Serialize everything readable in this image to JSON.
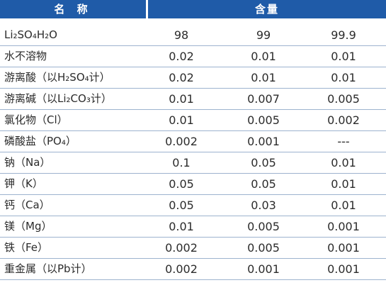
{
  "header": {
    "name_label": "名 称",
    "content_label": "含量"
  },
  "rows": [
    {
      "name": "Li₂SO₄H₂O",
      "v1": "98",
      "v2": "99",
      "v3": "99.9"
    },
    {
      "name": "水不溶物",
      "v1": "0.02",
      "v2": "0.01",
      "v3": "0.01"
    },
    {
      "name": "游离酸（以H₂SO₄计）",
      "v1": "0.02",
      "v2": "0.01",
      "v3": "0.01"
    },
    {
      "name": "游离碱（以Li₂CO₃计）",
      "v1": "0.01",
      "v2": "0.007",
      "v3": "0.005"
    },
    {
      "name": "氯化物（Cl）",
      "v1": "0.01",
      "v2": "0.005",
      "v3": "0.002"
    },
    {
      "name": "磷酸盐（PO₄）",
      "v1": "0.002",
      "v2": "0.001",
      "v3": "---"
    },
    {
      "name": "钠（Na）",
      "v1": "0.1",
      "v2": "0.05",
      "v3": "0.01"
    },
    {
      "name": "钾（K）",
      "v1": "0.05",
      "v2": "0.05",
      "v3": "0.01"
    },
    {
      "name": "钙（Ca）",
      "v1": "0.05",
      "v2": "0.03",
      "v3": "0.01"
    },
    {
      "name": "镁（Mg）",
      "v1": "0.01",
      "v2": "0.005",
      "v3": "0.001"
    },
    {
      "name": "铁（Fe）",
      "v1": "0.002",
      "v2": "0.005",
      "v3": "0.001"
    },
    {
      "name": "重金属（以Pb计）",
      "v1": "0.002",
      "v2": "0.001",
      "v3": "0.001"
    }
  ]
}
